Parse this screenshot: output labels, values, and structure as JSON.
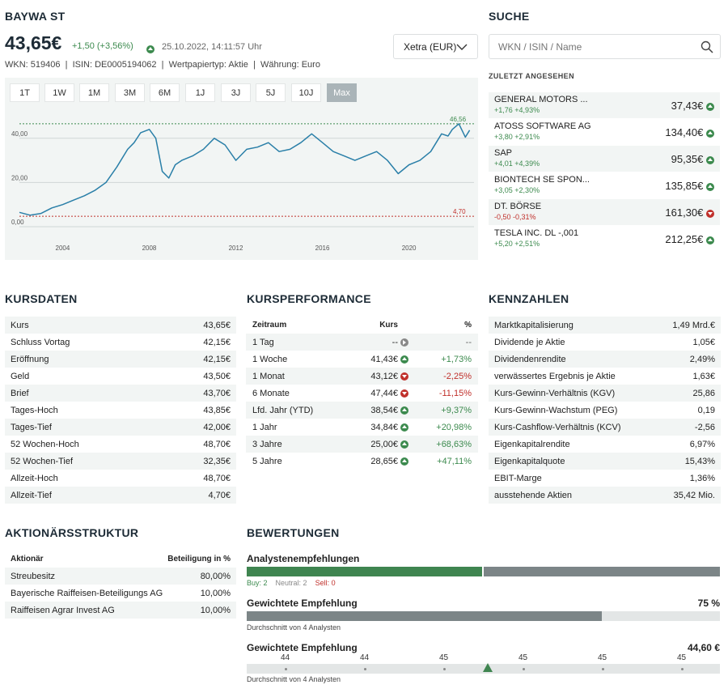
{
  "stock": {
    "name": "BAYWA ST",
    "price": "43,65€",
    "change": "+1,50 (+3,56%)",
    "datetime": "25.10.2022, 14:11:57 Uhr",
    "wkn": "WKN: 519406",
    "isin": "ISIN: DE0005194062",
    "type": "Wertpapiertyp: Aktie",
    "currency": "Währung: Euro",
    "exchange": "Xetra (EUR)"
  },
  "ranges": [
    "1T",
    "1W",
    "1M",
    "3M",
    "6M",
    "1J",
    "3J",
    "5J",
    "10J",
    "Max"
  ],
  "active_range": "Max",
  "chart_data": {
    "type": "line",
    "x_ticks": [
      "2004",
      "2008",
      "2012",
      "2016",
      "2020"
    ],
    "y_ticks": [
      "0,00",
      "20,00",
      "40,00"
    ],
    "ylim": [
      0,
      52
    ],
    "max_label": "46,56",
    "min_label": "4,70",
    "max_value": 46.56,
    "min_value": 4.7,
    "series": [
      {
        "x": [
          2002.0,
          2002.5,
          2003.0,
          2003.5,
          2004.0,
          2004.5,
          2005.0,
          2005.5,
          2006.0,
          2006.5,
          2007.0,
          2007.3,
          2007.6,
          2008.0,
          2008.3,
          2008.6,
          2008.9,
          2009.2,
          2009.5,
          2010.0,
          2010.5,
          2011.0,
          2011.5,
          2012.0,
          2012.5,
          2013.0,
          2013.5,
          2014.0,
          2014.5,
          2015.0,
          2015.5,
          2016.0,
          2016.5,
          2017.0,
          2017.5,
          2018.0,
          2018.5,
          2019.0,
          2019.5,
          2020.0,
          2020.5,
          2021.0,
          2021.5,
          2021.8,
          2022.0,
          2022.3,
          2022.6,
          2022.8
        ],
        "y": [
          6.5,
          5.2,
          6.0,
          8.5,
          10.0,
          12.0,
          14.0,
          16.5,
          20.0,
          27.0,
          35.0,
          38.0,
          42.5,
          44.0,
          40.0,
          25.0,
          22.0,
          28.0,
          30.0,
          32.0,
          35.0,
          40.0,
          37.0,
          30.0,
          35.0,
          36.0,
          38.0,
          34.0,
          35.0,
          38.0,
          42.0,
          38.0,
          34.0,
          32.0,
          30.0,
          32.0,
          34.0,
          30.0,
          24.0,
          28.0,
          30.0,
          34.0,
          42.0,
          41.0,
          44.0,
          46.56,
          40.5,
          43.65
        ]
      }
    ]
  },
  "search": {
    "title": "SUCHE",
    "placeholder": "WKN / ISIN / Name",
    "recent_title": "ZULETZT ANGESEHEN",
    "recent": [
      {
        "name": "GENERAL MOTORS ...",
        "change": "+1,76",
        "pct": "+4,93%",
        "price": "37,43€",
        "dir": "up"
      },
      {
        "name": "ATOSS SOFTWARE AG",
        "change": "+3,80",
        "pct": "+2,91%",
        "price": "134,40€",
        "dir": "up"
      },
      {
        "name": "SAP",
        "change": "+4,01",
        "pct": "+4,39%",
        "price": "95,35€",
        "dir": "up"
      },
      {
        "name": "BIONTECH SE SPON...",
        "change": "+3,05",
        "pct": "+2,30%",
        "price": "135,85€",
        "dir": "up"
      },
      {
        "name": "DT. BÖRSE",
        "change": "-0,50",
        "pct": "-0,31%",
        "price": "161,30€",
        "dir": "down"
      },
      {
        "name": "TESLA INC. DL -,001",
        "change": "+5,20",
        "pct": "+2,51%",
        "price": "212,25€",
        "dir": "up"
      }
    ]
  },
  "kursdaten": {
    "title": "KURSDATEN",
    "rows": [
      {
        "label": "Kurs",
        "value": "43,65€"
      },
      {
        "label": "Schluss Vortag",
        "value": "42,15€"
      },
      {
        "label": "Eröffnung",
        "value": "42,15€"
      },
      {
        "label": "Geld",
        "value": "43,50€"
      },
      {
        "label": "Brief",
        "value": "43,70€"
      },
      {
        "label": "Tages-Hoch",
        "value": "43,85€"
      },
      {
        "label": "Tages-Tief",
        "value": "42,00€"
      },
      {
        "label": "52 Wochen-Hoch",
        "value": "48,70€"
      },
      {
        "label": "52 Wochen-Tief",
        "value": "32,35€"
      },
      {
        "label": "Allzeit-Hoch",
        "value": "48,70€"
      },
      {
        "label": "Allzeit-Tief",
        "value": "4,70€"
      }
    ]
  },
  "performance": {
    "title": "KURSPERFORMANCE",
    "headers": [
      "Zeitraum",
      "Kurs",
      "%"
    ],
    "rows": [
      {
        "period": "1 Tag",
        "kurs": "--",
        "pct": "--",
        "dir": "neutral"
      },
      {
        "period": "1 Woche",
        "kurs": "41,43€",
        "pct": "+1,73%",
        "dir": "up"
      },
      {
        "period": "1 Monat",
        "kurs": "43,12€",
        "pct": "-2,25%",
        "dir": "down"
      },
      {
        "period": "6 Monate",
        "kurs": "47,44€",
        "pct": "-11,15%",
        "dir": "down"
      },
      {
        "period": "Lfd. Jahr (YTD)",
        "kurs": "38,54€",
        "pct": "+9,37%",
        "dir": "up"
      },
      {
        "period": "1 Jahr",
        "kurs": "34,84€",
        "pct": "+20,98%",
        "dir": "up"
      },
      {
        "period": "3 Jahre",
        "kurs": "25,00€",
        "pct": "+68,63%",
        "dir": "up"
      },
      {
        "period": "5 Jahre",
        "kurs": "28,65€",
        "pct": "+47,11%",
        "dir": "up"
      }
    ]
  },
  "kennzahlen": {
    "title": "KENNZAHLEN",
    "rows": [
      {
        "label": "Marktkapitalisierung",
        "value": "1,49 Mrd.€"
      },
      {
        "label": "Dividende je Aktie",
        "value": "1,05€"
      },
      {
        "label": "Dividendenrendite",
        "value": "2,49%"
      },
      {
        "label": "verwässertes Ergebnis je Aktie",
        "value": "1,63€"
      },
      {
        "label": "Kurs-Gewinn-Verhältnis (KGV)",
        "value": "25,86"
      },
      {
        "label": "Kurs-Gewinn-Wachstum (PEG)",
        "value": "0,19"
      },
      {
        "label": "Kurs-Cashflow-Verhältnis (KCV)",
        "value": "-2,56"
      },
      {
        "label": "Eigenkapitalrendite",
        "value": "6,97%"
      },
      {
        "label": "Eigenkapitalquote",
        "value": "15,43%"
      },
      {
        "label": "EBIT-Marge",
        "value": "1,36%"
      },
      {
        "label": "ausstehende Aktien",
        "value": "35,42 Mio."
      }
    ]
  },
  "aktionaer": {
    "title": "AKTIONÄRSSTRUKTUR",
    "headers": [
      "Aktionär",
      "Beteiligung in %"
    ],
    "rows": [
      {
        "name": "Streubesitz",
        "value": "80,00%"
      },
      {
        "name": "Bayerische Raiffeisen-Beteiligungs AG",
        "value": "10,00%"
      },
      {
        "name": "Raiffeisen Agrar Invest AG",
        "value": "10,00%"
      }
    ]
  },
  "bewertungen": {
    "title": "BEWERTUNGEN",
    "analysten_title": "Analystenempfehlungen",
    "buy": "Buy: 2",
    "neutral": "Neutral: 2",
    "sell": "Sell: 0",
    "buy_fraction": 0.5,
    "gewichtet_title": "Gewichtete Empfehlung",
    "gewichtet_value": "75 %",
    "gewichtet_fraction": 0.75,
    "durchschnitt": "Durchschnitt von 4 Analysten",
    "kursziel_title": "Gewichtete Empfehlung",
    "kursziel_value": "44,60 €",
    "scale_labels": [
      "44",
      "44",
      "45",
      "45",
      "45",
      "45"
    ],
    "durchschnitt2": "Durchschnitt von 4 Analysten"
  }
}
